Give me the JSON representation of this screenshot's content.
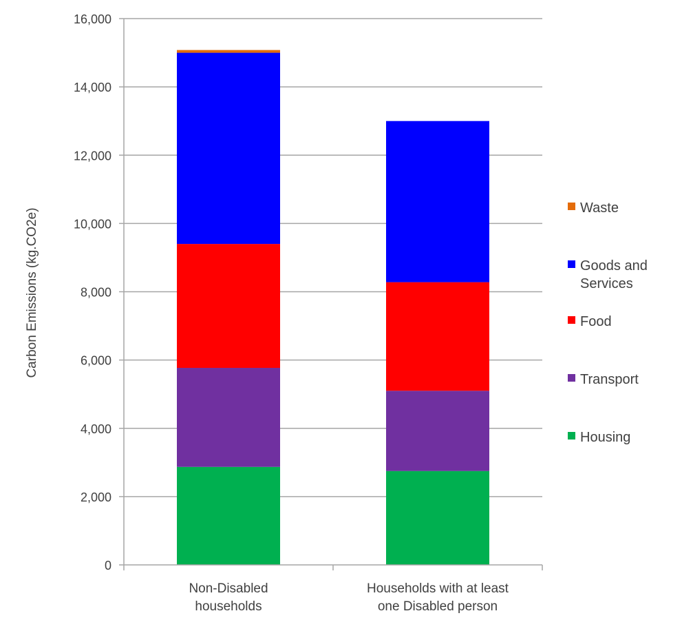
{
  "chart_data": {
    "type": "bar",
    "stacked": true,
    "title": "",
    "xlabel": "",
    "ylabel": "Carbon Emissions (kg.CO2e)",
    "ylim": [
      0,
      16000
    ],
    "yticks": [
      0,
      2000,
      4000,
      6000,
      8000,
      10000,
      12000,
      14000,
      16000
    ],
    "ytick_labels": [
      "0",
      "2,000",
      "4,000",
      "6,000",
      "8,000",
      "10,000",
      "12,000",
      "14,000",
      "16,000"
    ],
    "grid": true,
    "legend_position": "right",
    "categories": [
      [
        "Non-Disabled",
        "households"
      ],
      [
        "Households with at least",
        "one Disabled person"
      ]
    ],
    "series": [
      {
        "name": "Housing",
        "color": "#00b050",
        "values": [
          2870,
          2750
        ]
      },
      {
        "name": "Transport",
        "color": "#7030a0",
        "values": [
          2900,
          2350
        ]
      },
      {
        "name": "Food",
        "color": "#ff0000",
        "values": [
          3630,
          3180
        ]
      },
      {
        "name": "Goods and Services",
        "color": "#0000ff",
        "values": [
          5600,
          4720
        ]
      },
      {
        "name": "Waste",
        "color": "#e46c0a",
        "values": [
          80,
          0
        ]
      }
    ],
    "legend_order": [
      "Waste",
      "Goods and Services",
      "Food",
      "Transport",
      "Housing"
    ]
  }
}
